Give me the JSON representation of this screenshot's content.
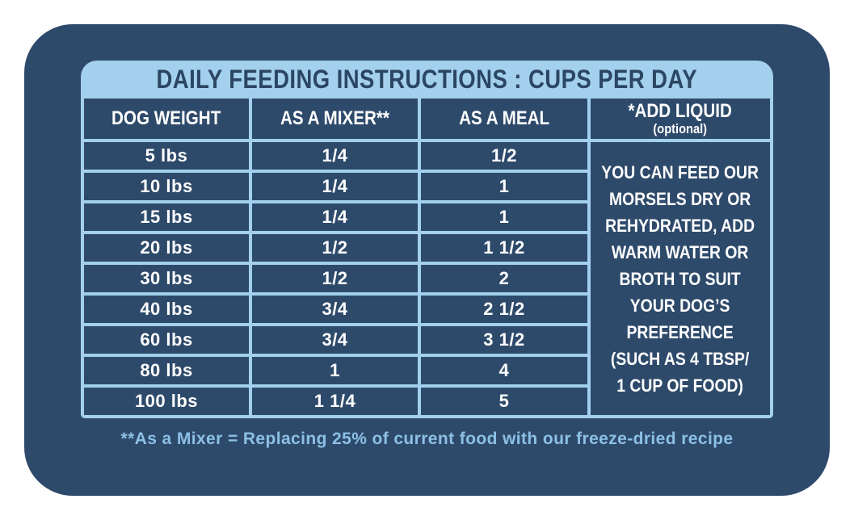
{
  "colors": {
    "page_bg": "#ffffff",
    "navy": "#2e4a6b",
    "light_blue": "#a3d0ec",
    "title_text": "#2b4663",
    "cell_text": "#ffffff",
    "footnote_text": "#8cc0e5"
  },
  "title": "DAILY FEEDING INSTRUCTIONS : CUPS PER DAY",
  "table": {
    "columns": [
      {
        "label": "DOG WEIGHT"
      },
      {
        "label": "AS A MIXER**"
      },
      {
        "label": "AS A MEAL"
      },
      {
        "label": "*ADD LIQUID",
        "sublabel": "(optional)"
      }
    ],
    "rows": [
      {
        "weight": "5 lbs",
        "as_a_mixer": "1/4",
        "as_a_meal": "1/2"
      },
      {
        "weight": "10 lbs",
        "as_a_mixer": "1/4",
        "as_a_meal": "1"
      },
      {
        "weight": "15 lbs",
        "as_a_mixer": "1/4",
        "as_a_meal": "1"
      },
      {
        "weight": "20 lbs",
        "as_a_mixer": "1/2",
        "as_a_meal": "1 1/2"
      },
      {
        "weight": "30 lbs",
        "as_a_mixer": "1/2",
        "as_a_meal": "2"
      },
      {
        "weight": "40 lbs",
        "as_a_mixer": "3/4",
        "as_a_meal": "2 1/2"
      },
      {
        "weight": "60 lbs",
        "as_a_mixer": "3/4",
        "as_a_meal": "3 1/2"
      },
      {
        "weight": "80 lbs",
        "as_a_mixer": "1",
        "as_a_meal": "4"
      },
      {
        "weight": "100 lbs",
        "as_a_mixer": "1 1/4",
        "as_a_meal": "5"
      }
    ],
    "add_liquid_note": "YOU CAN FEED OUR\nMORSELS DRY OR\nREHYDRATED, ADD\nWARM WATER OR\nBROTH TO SUIT\nYOUR DOG’S\nPREFERENCE\n(SUCH AS 4 TBSP/\n1 CUP OF FOOD)"
  },
  "footnote": "**As a Mixer = Replacing 25% of current food with our freeze-dried recipe"
}
